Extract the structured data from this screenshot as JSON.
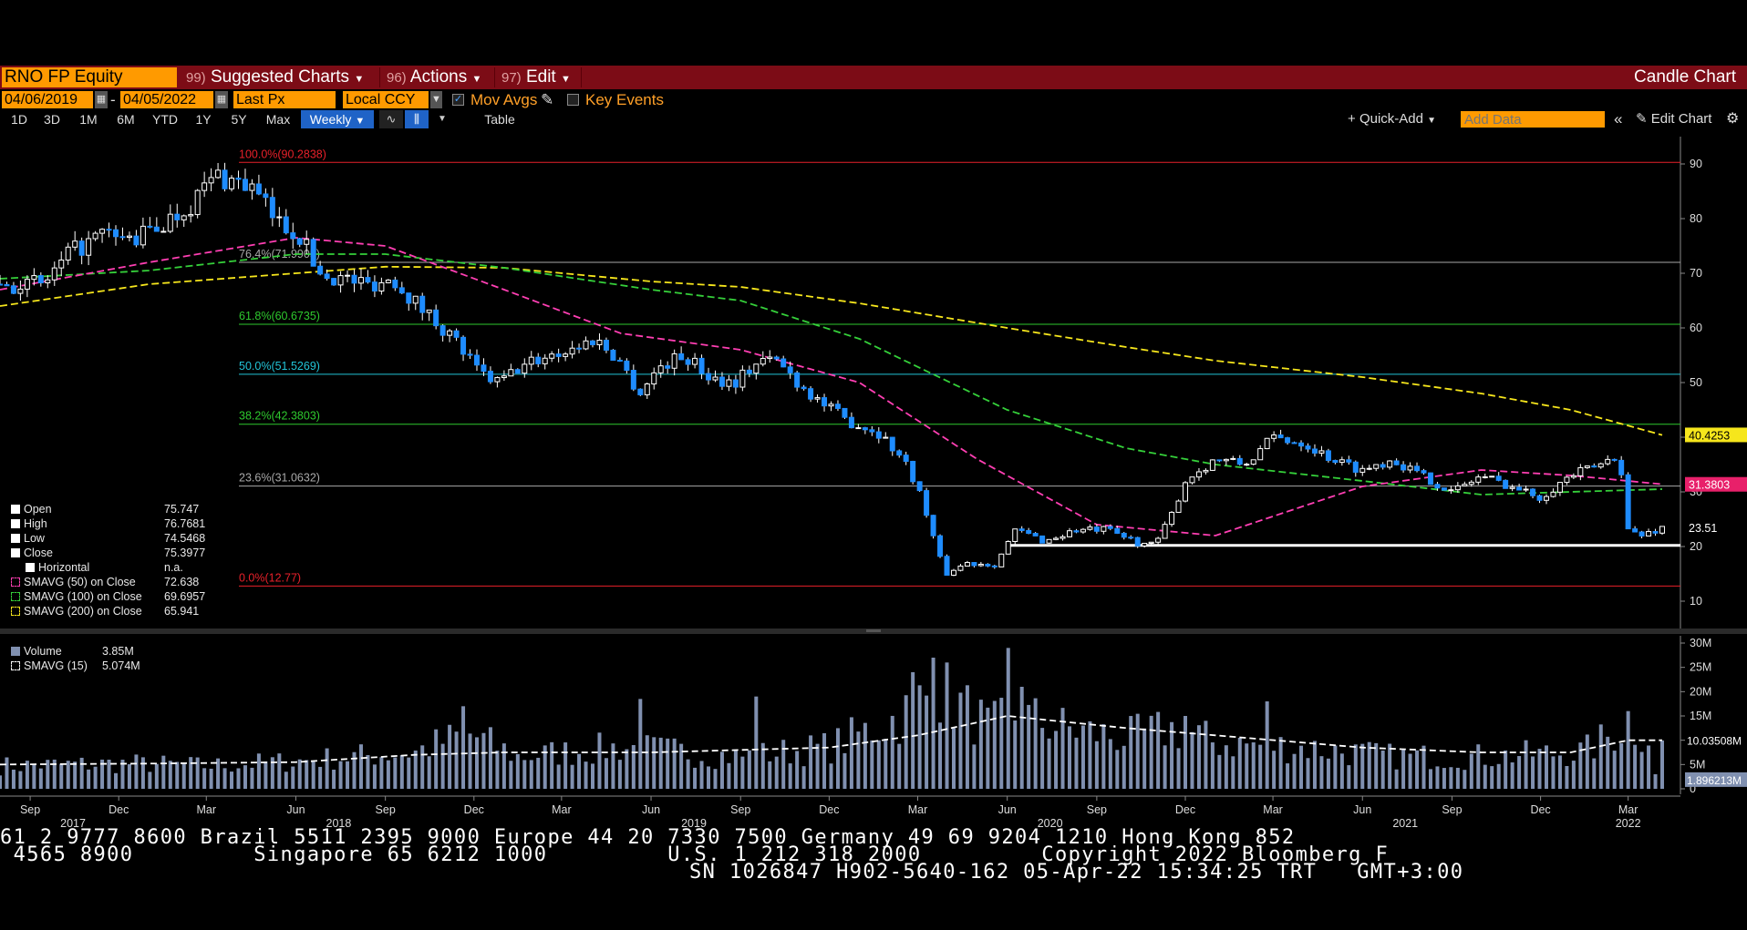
{
  "header": {
    "ticker": "RNO FP Equity",
    "menus": [
      {
        "num": "99)",
        "label": "Suggested Charts"
      },
      {
        "num": "96)",
        "label": "Actions"
      },
      {
        "num": "97)",
        "label": "Edit"
      }
    ],
    "chart_type": "Candle Chart"
  },
  "controls": {
    "start_date": "04/06/2019",
    "end_date": "04/05/2022",
    "date_sep": "-",
    "price_field": "Last Px",
    "currency": "Local CCY",
    "mov_avgs_label": "Mov Avgs",
    "mov_avgs_checked": true,
    "key_events_label": "Key Events",
    "key_events_checked": false
  },
  "toolbar": {
    "ranges": [
      "1D",
      "3D",
      "1M",
      "6M",
      "YTD",
      "1Y",
      "5Y",
      "Max"
    ],
    "frequency": "Weekly",
    "table_label": "Table",
    "quick_add_label": "Quick-Add",
    "add_data_placeholder": "Add Data",
    "edit_chart_label": "Edit Chart"
  },
  "legend": {
    "price": [
      {
        "label": "Open",
        "value": "75.747"
      },
      {
        "label": "High",
        "value": "76.7681"
      },
      {
        "label": "Low",
        "value": "74.5468"
      },
      {
        "label": "Close",
        "value": "75.3977"
      },
      {
        "label": "Horizontal",
        "value": "n.a."
      },
      {
        "label": "SMAVG (50)  on Close",
        "value": "72.638",
        "color": "#ff3fb3"
      },
      {
        "label": "SMAVG (100)  on Close",
        "value": "69.6957",
        "color": "#35d03a"
      },
      {
        "label": "SMAVG (200)  on Close",
        "value": "65.941",
        "color": "#f6e61c"
      }
    ],
    "volume": [
      {
        "label": "Volume",
        "value": "3.85M"
      },
      {
        "label": "SMAVG (15)",
        "value": "5.074M"
      }
    ]
  },
  "fib_levels": [
    {
      "label": "100.0%(90.2838)",
      "value": 90.2838,
      "color": "#e8202a"
    },
    {
      "label": "76.4%(71.9905)",
      "value": 71.9905,
      "color": "#a8a8a8"
    },
    {
      "label": "61.8%(60.6735)",
      "value": 60.6735,
      "color": "#2ec82e"
    },
    {
      "label": "50.0%(51.5269)",
      "value": 51.5269,
      "color": "#22c3d6"
    },
    {
      "label": "38.2%(42.3803)",
      "value": 42.3803,
      "color": "#2ec82e"
    },
    {
      "label": "23.6%(31.0632)",
      "value": 31.0632,
      "color": "#a8a8a8"
    },
    {
      "label": "0.0%(12.77)",
      "value": 12.77,
      "color": "#e8202a"
    }
  ],
  "horizontal_line": {
    "value": 20.2
  },
  "badges": [
    {
      "label": "40.4253",
      "value": 40.4253,
      "bg": "#f6e61c",
      "fg": "#000"
    },
    {
      "label": "31.3803",
      "value": 31.3803,
      "bg": "#e8206a",
      "fg": "#fff"
    },
    {
      "label": "23.51",
      "value": 23.51,
      "bg": "#000",
      "fg": "#fff"
    }
  ],
  "volume_badges": [
    {
      "label": "10.03508M",
      "value": 10.03508,
      "bg": "#000",
      "fg": "#fff"
    },
    {
      "label": "1.896213M",
      "value": 1.896213,
      "bg": "#8090b0",
      "fg": "#fff"
    }
  ],
  "chart_data": {
    "type": "candlestick",
    "frequency": "weekly",
    "x_range": [
      "2017-08-01",
      "2022-04-05"
    ],
    "y_range": [
      5,
      95
    ],
    "y_ticks": [
      10,
      20,
      30,
      40,
      50,
      60,
      70,
      80,
      90
    ],
    "x_months": [
      {
        "label": "Sep",
        "date": "2017-09-01"
      },
      {
        "label": "Dec",
        "date": "2017-12-01"
      },
      {
        "label": "Mar",
        "date": "2018-03-01"
      },
      {
        "label": "Jun",
        "date": "2018-06-01"
      },
      {
        "label": "Sep",
        "date": "2018-09-01"
      },
      {
        "label": "Dec",
        "date": "2018-12-01"
      },
      {
        "label": "Mar",
        "date": "2019-03-01"
      },
      {
        "label": "Jun",
        "date": "2019-06-01"
      },
      {
        "label": "Sep",
        "date": "2019-09-01"
      },
      {
        "label": "Dec",
        "date": "2019-12-01"
      },
      {
        "label": "Mar",
        "date": "2020-03-01"
      },
      {
        "label": "Jun",
        "date": "2020-06-01"
      },
      {
        "label": "Sep",
        "date": "2020-09-01"
      },
      {
        "label": "Dec",
        "date": "2020-12-01"
      },
      {
        "label": "Mar",
        "date": "2021-03-01"
      },
      {
        "label": "Jun",
        "date": "2021-06-01"
      },
      {
        "label": "Sep",
        "date": "2021-09-01"
      },
      {
        "label": "Dec",
        "date": "2021-12-01"
      },
      {
        "label": "Mar",
        "date": "2022-03-01"
      }
    ],
    "x_years": [
      {
        "label": "2017",
        "date": "2017-10-15"
      },
      {
        "label": "2018",
        "date": "2018-07-15"
      },
      {
        "label": "2019",
        "date": "2019-07-15"
      },
      {
        "label": "2020",
        "date": "2020-07-15"
      },
      {
        "label": "2021",
        "date": "2021-07-15"
      },
      {
        "label": "2022",
        "date": "2022-03-01"
      }
    ],
    "close_path": [
      [
        "2017-08-01",
        68
      ],
      [
        "2017-09-15",
        68
      ],
      [
        "2017-10-15",
        74
      ],
      [
        "2017-11-15",
        77
      ],
      [
        "2017-12-15",
        76
      ],
      [
        "2018-01-15",
        79
      ],
      [
        "2018-02-15",
        83
      ],
      [
        "2018-03-10",
        88
      ],
      [
        "2018-04-15",
        86
      ],
      [
        "2018-05-10",
        80
      ],
      [
        "2018-06-05",
        77
      ],
      [
        "2018-06-25",
        70
      ],
      [
        "2018-07-20",
        69
      ],
      [
        "2018-08-15",
        68
      ],
      [
        "2018-09-10",
        69
      ],
      [
        "2018-10-05",
        64
      ],
      [
        "2018-10-25",
        61
      ],
      [
        "2018-11-15",
        57
      ],
      [
        "2018-12-05",
        52
      ],
      [
        "2018-12-25",
        50
      ],
      [
        "2019-01-20",
        53
      ],
      [
        "2019-02-15",
        55
      ],
      [
        "2019-03-10",
        56
      ],
      [
        "2019-04-05",
        58
      ],
      [
        "2019-04-30",
        54
      ],
      [
        "2019-05-20",
        48
      ],
      [
        "2019-06-10",
        53
      ],
      [
        "2019-07-05",
        55
      ],
      [
        "2019-08-01",
        51
      ],
      [
        "2019-08-25",
        50
      ],
      [
        "2019-09-20",
        54
      ],
      [
        "2019-10-10",
        54
      ],
      [
        "2019-10-30",
        50
      ],
      [
        "2019-11-25",
        46
      ],
      [
        "2019-12-20",
        43
      ],
      [
        "2020-01-20",
        41
      ],
      [
        "2020-02-15",
        36
      ],
      [
        "2020-03-01",
        31
      ],
      [
        "2020-03-15",
        23
      ],
      [
        "2020-03-28",
        15
      ],
      [
        "2020-04-20",
        17
      ],
      [
        "2020-05-20",
        17
      ],
      [
        "2020-06-10",
        23
      ],
      [
        "2020-07-10",
        21
      ],
      [
        "2020-08-10",
        23
      ],
      [
        "2020-09-10",
        23
      ],
      [
        "2020-10-10",
        21
      ],
      [
        "2020-10-30",
        20
      ],
      [
        "2020-11-15",
        25
      ],
      [
        "2020-12-01",
        32
      ],
      [
        "2021-01-01",
        36
      ],
      [
        "2021-02-01",
        35
      ],
      [
        "2021-03-01",
        40
      ],
      [
        "2021-04-01",
        39
      ],
      [
        "2021-05-01",
        36
      ],
      [
        "2021-06-01",
        34
      ],
      [
        "2021-07-01",
        36
      ],
      [
        "2021-08-01",
        33
      ],
      [
        "2021-09-01",
        30
      ],
      [
        "2021-10-01",
        33
      ],
      [
        "2021-11-01",
        31
      ],
      [
        "2021-12-01",
        29
      ],
      [
        "2022-01-01",
        33
      ],
      [
        "2022-02-01",
        35
      ],
      [
        "2022-02-20",
        37
      ],
      [
        "2022-03-01",
        23
      ],
      [
        "2022-03-15",
        22
      ],
      [
        "2022-04-05",
        23.5
      ]
    ],
    "sma50_path": [
      [
        "2017-08-01",
        67
      ],
      [
        "2018-01-01",
        72
      ],
      [
        "2018-06-01",
        76.5
      ],
      [
        "2018-09-01",
        75
      ],
      [
        "2019-01-01",
        67
      ],
      [
        "2019-05-01",
        59
      ],
      [
        "2019-09-01",
        56
      ],
      [
        "2020-01-01",
        50
      ],
      [
        "2020-05-01",
        36
      ],
      [
        "2020-09-01",
        24
      ],
      [
        "2021-01-01",
        22
      ],
      [
        "2021-06-01",
        31
      ],
      [
        "2021-10-01",
        34
      ],
      [
        "2022-01-01",
        33
      ],
      [
        "2022-04-05",
        31.4
      ]
    ],
    "sma100_path": [
      [
        "2017-08-01",
        69
      ],
      [
        "2018-01-01",
        70.5
      ],
      [
        "2018-06-01",
        73.5
      ],
      [
        "2018-09-01",
        73.5
      ],
      [
        "2019-01-01",
        71
      ],
      [
        "2019-06-01",
        67
      ],
      [
        "2019-09-01",
        65
      ],
      [
        "2020-01-01",
        58
      ],
      [
        "2020-06-01",
        45
      ],
      [
        "2020-10-01",
        38
      ],
      [
        "2021-01-01",
        35
      ],
      [
        "2021-06-01",
        32
      ],
      [
        "2021-10-01",
        29.5
      ],
      [
        "2022-01-01",
        30
      ],
      [
        "2022-04-05",
        30.5
      ]
    ],
    "sma200_path": [
      [
        "2017-08-01",
        64
      ],
      [
        "2018-01-01",
        68
      ],
      [
        "2018-06-01",
        70
      ],
      [
        "2018-09-01",
        71.2
      ],
      [
        "2019-01-01",
        71
      ],
      [
        "2019-06-01",
        68.5
      ],
      [
        "2019-09-01",
        67.5
      ],
      [
        "2020-01-01",
        64.5
      ],
      [
        "2020-06-01",
        60
      ],
      [
        "2020-10-01",
        56.5
      ],
      [
        "2021-01-01",
        54
      ],
      [
        "2021-06-01",
        51
      ],
      [
        "2021-10-01",
        48
      ],
      [
        "2022-01-01",
        45
      ],
      [
        "2022-04-05",
        40.4
      ]
    ],
    "volume": {
      "unit": "M",
      "y_range": [
        0,
        30
      ],
      "y_ticks": [
        0,
        5,
        10,
        15,
        20,
        25,
        30
      ],
      "tick_labels": [
        "0",
        "5M",
        "10M",
        "15M",
        "20M",
        "25M",
        "30M"
      ],
      "bar_path": [
        [
          "2017-08-01",
          5
        ],
        [
          "2017-12-15",
          5.5
        ],
        [
          "2018-03-01",
          5
        ],
        [
          "2018-06-01",
          6
        ],
        [
          "2018-10-01",
          8
        ],
        [
          "2018-11-25",
          12
        ],
        [
          "2019-01-15",
          7
        ],
        [
          "2019-05-01",
          9
        ],
        [
          "2019-09-01",
          7
        ],
        [
          "2019-12-01",
          9
        ],
        [
          "2020-02-15",
          16
        ],
        [
          "2020-03-20",
          22
        ],
        [
          "2020-05-15",
          13
        ],
        [
          "2020-06-10",
          16
        ],
        [
          "2020-08-01",
          13
        ],
        [
          "2020-10-01",
          11
        ],
        [
          "2020-11-20",
          13
        ],
        [
          "2021-01-01",
          10
        ],
        [
          "2021-04-01",
          9
        ],
        [
          "2021-07-01",
          7
        ],
        [
          "2021-10-01",
          7
        ],
        [
          "2022-01-15",
          8
        ],
        [
          "2022-03-01",
          14
        ],
        [
          "2022-04-05",
          10
        ]
      ],
      "spikes": [
        [
          "2018-11-20",
          17
        ],
        [
          "2019-05-20",
          18.5
        ],
        [
          "2019-09-20",
          19
        ],
        [
          "2020-02-25",
          24
        ],
        [
          "2020-03-15",
          27
        ],
        [
          "2020-06-01",
          29
        ],
        [
          "2020-06-15",
          21
        ],
        [
          "2020-11-30",
          15
        ],
        [
          "2021-02-20",
          18
        ],
        [
          "2022-03-01",
          16
        ],
        [
          "2022-04-01",
          3
        ]
      ],
      "sma15_path": [
        [
          "2017-08-01",
          5
        ],
        [
          "2018-01-01",
          5.2
        ],
        [
          "2018-06-01",
          5.5
        ],
        [
          "2018-10-01",
          7
        ],
        [
          "2019-01-01",
          7.5
        ],
        [
          "2019-06-01",
          7.5
        ],
        [
          "2019-12-01",
          8.5
        ],
        [
          "2020-03-01",
          11
        ],
        [
          "2020-06-01",
          15
        ],
        [
          "2020-10-01",
          12.5
        ],
        [
          "2021-01-01",
          11
        ],
        [
          "2021-06-01",
          8.5
        ],
        [
          "2021-10-01",
          7.5
        ],
        [
          "2022-01-01",
          7.5
        ],
        [
          "2022-03-01",
          10
        ],
        [
          "2022-04-05",
          10
        ]
      ]
    }
  },
  "footer": {
    "line1": "61 2 9777 8600 Brazil 5511 2395 9000 Europe 44 20 7330 7500 Germany 49 69 9204 1210 Hong Kong 852",
    "line2": " 4565 8900         Singapore 65 6212 1000         U.S. 1 212 318 2000         Copyright 2022 Bloomberg F",
    "line3": "SN 1026847 H902-5640-162 05-Apr-22 15:34:25 TRT   GMT+3:00"
  }
}
